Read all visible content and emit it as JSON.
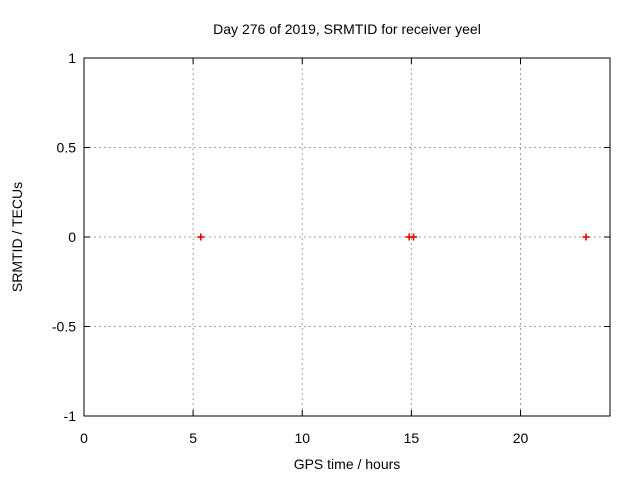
{
  "window": {
    "background": "#ffffff"
  },
  "chart_data": {
    "type": "scatter",
    "title": "Day 276 of 2019, SRMTID for receiver yeel",
    "xlabel": "GPS time / hours",
    "ylabel": "SRMTID / TECUs",
    "xlim": [
      0,
      24.1
    ],
    "ylim": [
      -1,
      1
    ],
    "xticks": [
      0,
      5,
      10,
      15,
      20
    ],
    "yticks": [
      -1,
      -0.5,
      0,
      0.5,
      1
    ],
    "grid": true,
    "legend": "none",
    "grid_color": "#a0a0a0",
    "border_color": "#000000",
    "text_color": "#000000",
    "series": [
      {
        "name": "SRMTID",
        "marker": "plus",
        "color": "#ef0000",
        "points": [
          [
            5.35,
            0
          ],
          [
            14.9,
            0
          ],
          [
            15.1,
            0
          ],
          [
            23.0,
            0
          ]
        ]
      }
    ]
  }
}
